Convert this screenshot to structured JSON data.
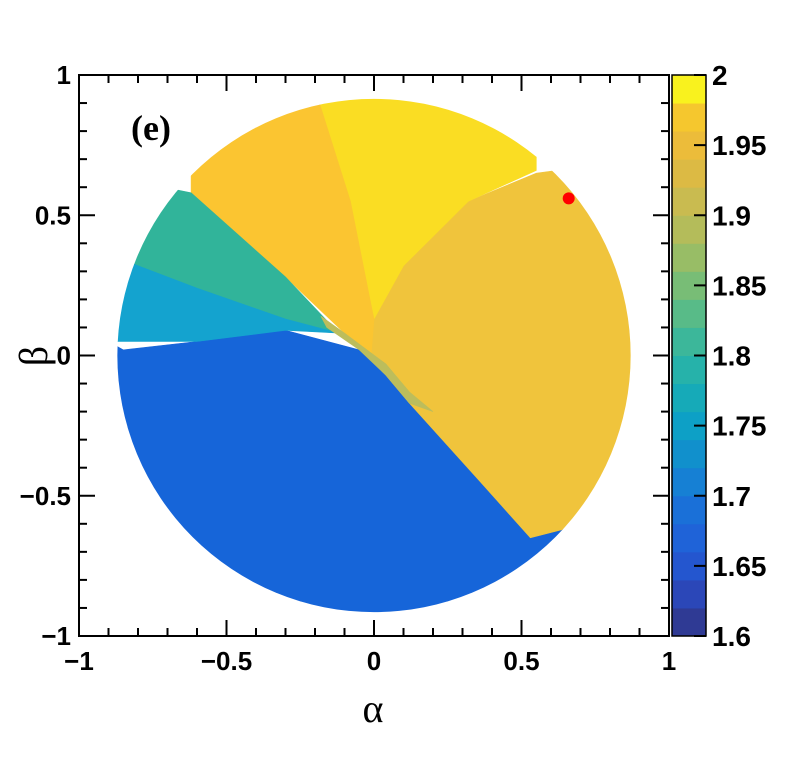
{
  "chart_data": {
    "type": "heatmap",
    "panel_label": "(e)",
    "xlabel": "α",
    "ylabel": "β",
    "xlim": [
      -1,
      1
    ],
    "ylim": [
      -1,
      1
    ],
    "x_ticks": [
      {
        "value": -1,
        "label": "−1"
      },
      {
        "value": -0.5,
        "label": "−0.5"
      },
      {
        "value": 0,
        "label": "0"
      },
      {
        "value": 0.5,
        "label": "0.5"
      },
      {
        "value": 1,
        "label": "1"
      }
    ],
    "y_ticks": [
      {
        "value": -1,
        "label": "−1"
      },
      {
        "value": -0.5,
        "label": "−0.5"
      },
      {
        "value": 0,
        "label": "0"
      },
      {
        "value": 0.5,
        "label": "0.5"
      },
      {
        "value": 1,
        "label": "1"
      }
    ],
    "color_scale": {
      "range": [
        1.6,
        2.0
      ],
      "levels": 20,
      "tick_labels": [
        {
          "value": 2.0,
          "label": "2"
        },
        {
          "value": 1.95,
          "label": "1.95"
        },
        {
          "value": 1.9,
          "label": "1.9"
        },
        {
          "value": 1.85,
          "label": "1.85"
        },
        {
          "value": 1.8,
          "label": "1.8"
        },
        {
          "value": 1.75,
          "label": "1.75"
        },
        {
          "value": 1.7,
          "label": "1.7"
        },
        {
          "value": 1.65,
          "label": "1.65"
        },
        {
          "value": 1.6,
          "label": "1.6"
        }
      ],
      "colors": [
        "#2f3a94",
        "#2b47b8",
        "#2456cf",
        "#1f63d8",
        "#1a70d8",
        "#1680d4",
        "#1190cc",
        "#0da0c6",
        "#16aab8",
        "#26b2aa",
        "#3cb79a",
        "#58bb88",
        "#78bd76",
        "#98bd66",
        "#b4bc5a",
        "#c9bb50",
        "#dcba44",
        "#ecbc3a",
        "#f5c72e",
        "#f9f21e"
      ]
    },
    "domain": {
      "shape": "disk",
      "radius": 0.87
    },
    "regions": [
      {
        "name": "lower-left",
        "value": 1.655,
        "color": "#1665d9"
      },
      {
        "name": "right",
        "value": 1.93,
        "color": "#f0c43c"
      },
      {
        "name": "top-center",
        "value": 1.97,
        "color": "#fadd23"
      },
      {
        "name": "upper-left",
        "value": 1.95,
        "color": "#fbc531"
      },
      {
        "name": "left-band-upper",
        "value": 1.78,
        "color": "#31b49a"
      },
      {
        "name": "left-band-lower",
        "value": 1.735,
        "color": "#14a3cf"
      },
      {
        "name": "diagonal-seam",
        "value": 1.89,
        "color": "#bcbd5c"
      }
    ],
    "marker": {
      "x": 0.66,
      "y": 0.56,
      "color": "#ff0000"
    }
  }
}
